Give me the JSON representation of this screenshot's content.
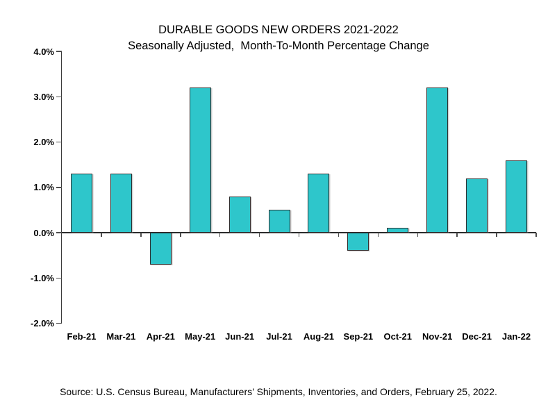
{
  "chart": {
    "title": "DURABLE GOODS NEW ORDERS 2021-2022",
    "subtitle": "Seasonally Adjusted,  Month-To-Month Percentage Change",
    "source": "Source: U.S. Census Bureau, Manufacturers’ Shipments, Inventories, and Orders, February 25, 2022."
  },
  "chart_data": {
    "type": "bar",
    "title": "DURABLE GOODS NEW ORDERS 2021-2022",
    "subtitle": "Seasonally Adjusted,  Month-To-Month Percentage Change",
    "categories": [
      "Feb-21",
      "Mar-21",
      "Apr-21",
      "May-21",
      "Jun-21",
      "Jul-21",
      "Aug-21",
      "Sep-21",
      "Oct-21",
      "Nov-21",
      "Dec-21",
      "Jan-22"
    ],
    "values": [
      1.3,
      1.3,
      -0.7,
      3.2,
      0.8,
      0.5,
      1.3,
      -0.4,
      0.1,
      3.2,
      1.2,
      1.6
    ],
    "unit": "%",
    "xlabel": "",
    "ylabel": "",
    "ylim": [
      -2.0,
      4.0
    ],
    "yticks": [
      {
        "value": 4,
        "label": "4.0%"
      },
      {
        "value": 3,
        "label": "3.0%"
      },
      {
        "value": 2,
        "label": "2.0%"
      },
      {
        "value": 1,
        "label": "1.0%"
      },
      {
        "value": 0,
        "label": "0.0%"
      },
      {
        "value": -1,
        "label": "-1.0%"
      },
      {
        "value": -2,
        "label": "-2.0%"
      }
    ],
    "grid": false,
    "legend": false,
    "bar_color": "#2EC6CB",
    "bar_border_color": "#2F2F2F",
    "axis_color": "#3A3A3A",
    "source": "Source: U.S. Census Bureau, Manufacturers’ Shipments, Inventories, and Orders, February 25, 2022."
  }
}
